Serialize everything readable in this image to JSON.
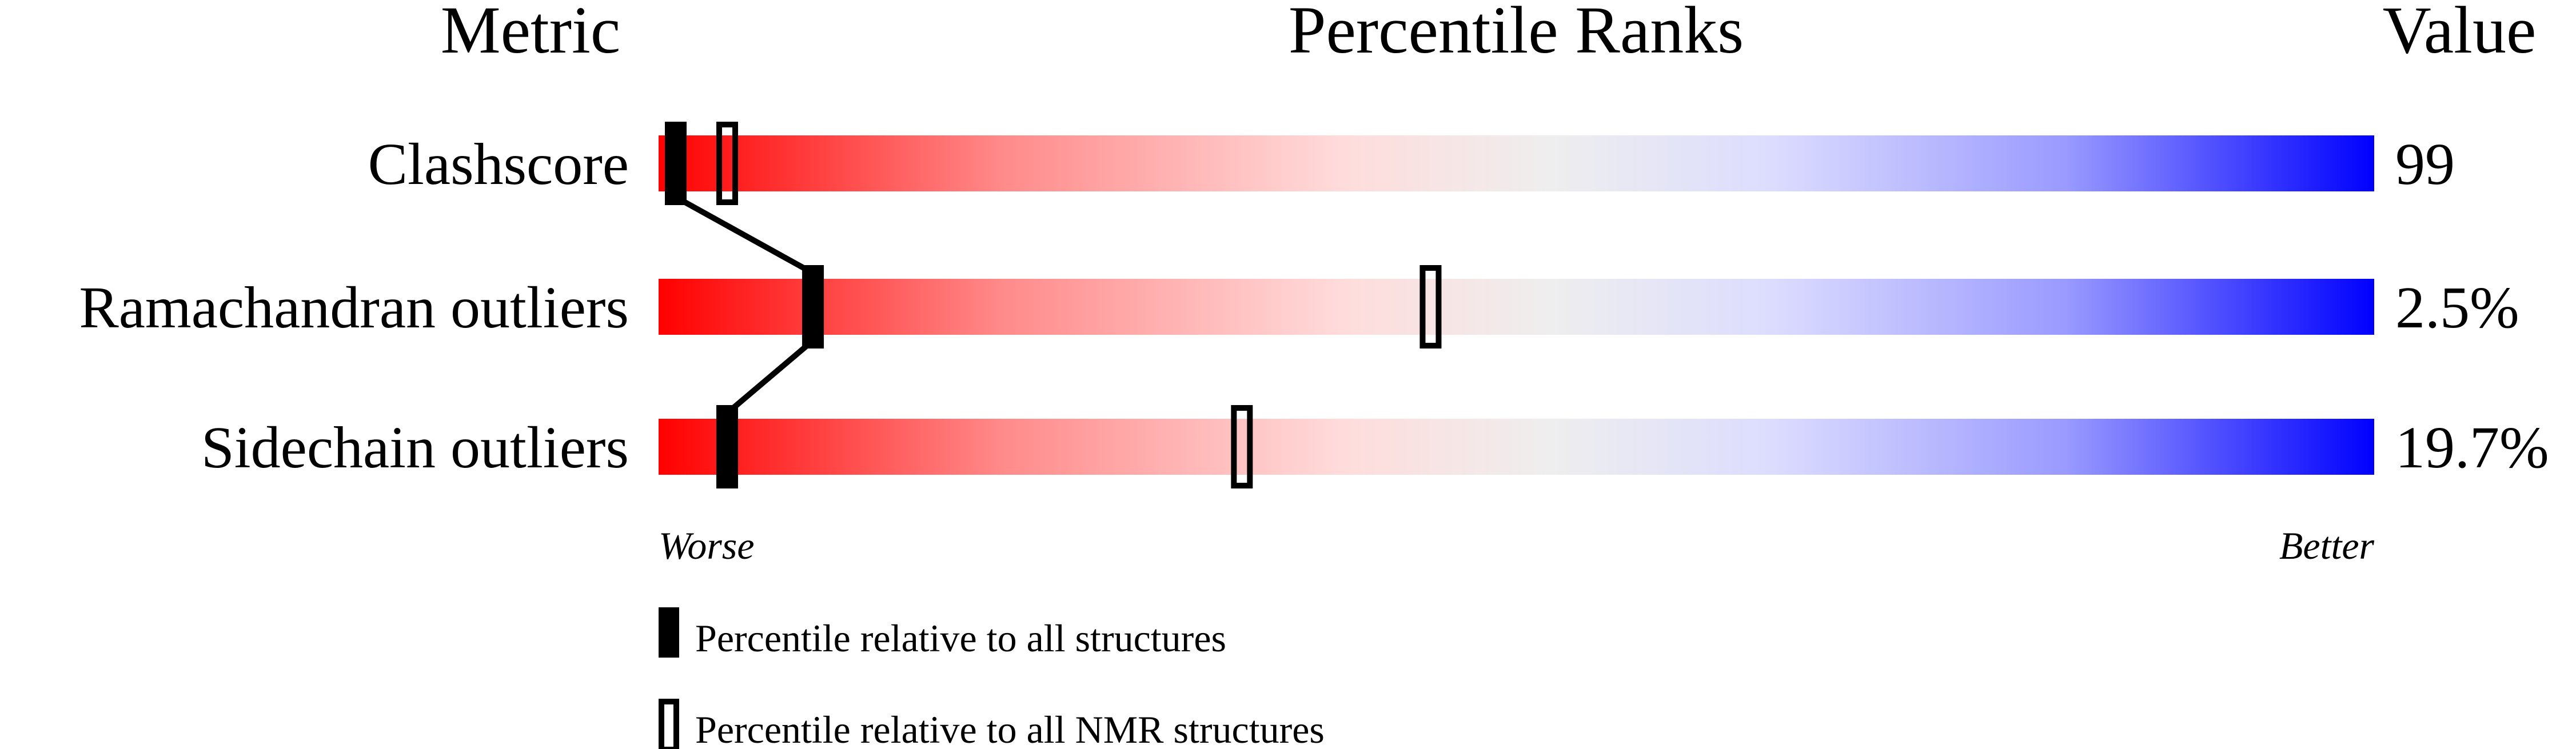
{
  "chart_data": {
    "type": "bar",
    "headers": {
      "metric": "Metric",
      "ranks": "Percentile Ranks",
      "value": "Value"
    },
    "x_range": [
      0,
      100
    ],
    "scale_labels": {
      "worse": "Worse",
      "better": "Better"
    },
    "gradient_colors": [
      "#ff0000",
      "#eeeeee",
      "#0000ff"
    ],
    "rows": [
      {
        "metric": "Clashscore",
        "value": "99",
        "percentile_all": 1,
        "percentile_nmr": 4
      },
      {
        "metric": "Ramachandran outliers",
        "value": "2.5%",
        "percentile_all": 9,
        "percentile_nmr": 45
      },
      {
        "metric": "Sidechain outliers",
        "value": "19.7%",
        "percentile_all": 4,
        "percentile_nmr": 34
      }
    ],
    "legend": [
      {
        "label": "Percentile relative to all structures",
        "marker": "filled"
      },
      {
        "label": "Percentile relative to all NMR structures",
        "marker": "open"
      }
    ]
  }
}
